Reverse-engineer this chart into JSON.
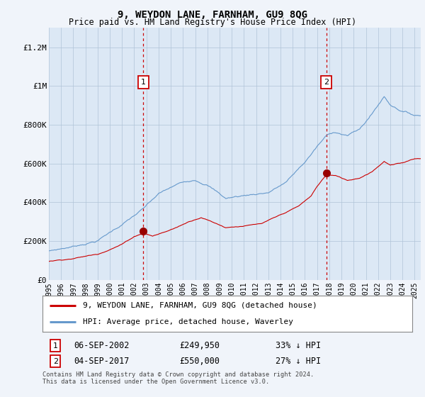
{
  "title": "9, WEYDON LANE, FARNHAM, GU9 8QG",
  "subtitle": "Price paid vs. HM Land Registry's House Price Index (HPI)",
  "red_label": "9, WEYDON LANE, FARNHAM, GU9 8QG (detached house)",
  "blue_label": "HPI: Average price, detached house, Waverley",
  "footnote": "Contains HM Land Registry data © Crown copyright and database right 2024.\nThis data is licensed under the Open Government Licence v3.0.",
  "purchase1": {
    "label": "1",
    "date": "06-SEP-2002",
    "price": "£249,950",
    "pct": "33% ↓ HPI",
    "year": 2002.75
  },
  "purchase2": {
    "label": "2",
    "date": "04-SEP-2017",
    "price": "£550,000",
    "pct": "27% ↓ HPI",
    "year": 2017.75
  },
  "p1_price": 249950,
  "p2_price": 550000,
  "ylim": [
    0,
    1300000
  ],
  "yticks": [
    0,
    200000,
    400000,
    600000,
    800000,
    1000000,
    1200000
  ],
  "ytick_labels": [
    "£0",
    "£200K",
    "£400K",
    "£600K",
    "£800K",
    "£1M",
    "£1.2M"
  ],
  "background_color": "#f0f4fa",
  "plot_bg": "#dce8f5",
  "red_color": "#cc0000",
  "blue_color": "#6699cc",
  "marker_color": "#990000",
  "vline_color": "#cc0000",
  "legend_bg": "#ffffff",
  "grid_color": "#b0c4d8"
}
